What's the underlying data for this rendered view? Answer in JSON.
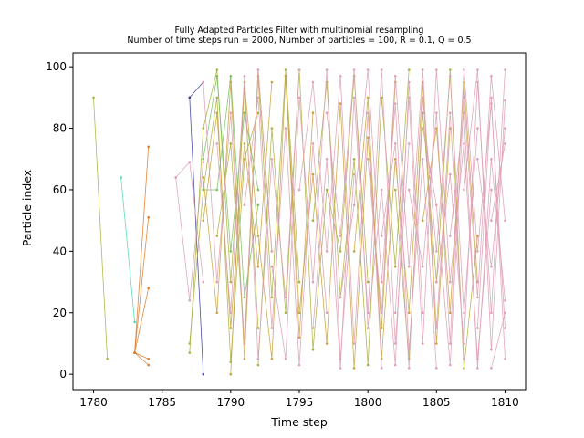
{
  "chart_data": {
    "type": "line",
    "title": "Fully Adapted Particles Filter with multinomial resampling",
    "subtitle": "Number of time steps run = 2000, Number of particles = 100, R = 0.1, Q = 0.5",
    "xlabel": "Time step",
    "ylabel": "Particle index",
    "xlim": [
      1778.5,
      1811.5
    ],
    "ylim": [
      -5,
      104.5
    ],
    "x_ticks": [
      1780,
      1785,
      1790,
      1795,
      1800,
      1805,
      1810
    ],
    "y_ticks": [
      0,
      20,
      40,
      60,
      80,
      100
    ],
    "grid": false,
    "legend": "none",
    "colors": {
      "olive": "#aab13c",
      "teal": "#4fd8b0",
      "orange": "#e07b2a",
      "navy": "#3b3ba0",
      "green": "#79c064",
      "gold": "#c9a23c",
      "pink": "#dea0b4",
      "frame": "#000000",
      "background": "#ffffff"
    },
    "lineages": [
      {
        "color": "olive",
        "points": [
          [
            1780,
            90
          ],
          [
            1781,
            5
          ]
        ]
      },
      {
        "color": "teal",
        "points": [
          [
            1782,
            64
          ],
          [
            1783,
            17
          ]
        ]
      },
      {
        "color": "orange",
        "points": [
          [
            1783,
            7
          ],
          [
            1784,
            74
          ]
        ]
      },
      {
        "color": "orange",
        "points": [
          [
            1783,
            7
          ],
          [
            1784,
            51
          ]
        ]
      },
      {
        "color": "orange",
        "points": [
          [
            1783,
            7
          ],
          [
            1784,
            28
          ]
        ]
      },
      {
        "color": "orange",
        "points": [
          [
            1783,
            7
          ],
          [
            1784,
            5
          ]
        ]
      },
      {
        "color": "orange",
        "points": [
          [
            1783,
            7
          ],
          [
            1784,
            3
          ]
        ]
      },
      {
        "color": "navy",
        "points": [
          [
            1787,
            90
          ],
          [
            1788,
            95
          ]
        ]
      },
      {
        "color": "navy",
        "points": [
          [
            1787,
            90
          ],
          [
            1788,
            0
          ]
        ]
      },
      {
        "color": "pink",
        "points": [
          [
            1786,
            64
          ],
          [
            1787,
            24
          ],
          [
            1788,
            69
          ]
        ]
      },
      {
        "color": "pink",
        "points": [
          [
            1786,
            64
          ],
          [
            1787,
            69
          ],
          [
            1788,
            30
          ]
        ]
      },
      {
        "color": "olive",
        "points": [
          [
            1787,
            7
          ],
          [
            1788,
            80
          ],
          [
            1789,
            99
          ],
          [
            1790,
            30
          ],
          [
            1791,
            93
          ],
          [
            1792,
            15
          ]
        ]
      },
      {
        "color": "olive",
        "points": [
          [
            1787,
            10
          ],
          [
            1788,
            60
          ],
          [
            1789,
            90
          ],
          [
            1790,
            4
          ],
          [
            1791,
            70
          ],
          [
            1792,
            85
          ]
        ]
      },
      {
        "color": "green",
        "points": [
          [
            1788,
            70
          ],
          [
            1789,
            97
          ],
          [
            1790,
            40
          ],
          [
            1791,
            85
          ],
          [
            1792,
            60
          ]
        ]
      },
      {
        "color": "green",
        "points": [
          [
            1788,
            60
          ],
          [
            1789,
            60
          ],
          [
            1790,
            97
          ],
          [
            1791,
            25
          ],
          [
            1792,
            55
          ]
        ]
      },
      {
        "color": "gold",
        "points": [
          [
            1788,
            64
          ],
          [
            1789,
            20
          ],
          [
            1790,
            95
          ],
          [
            1791,
            5
          ],
          [
            1792,
            99
          ],
          [
            1793,
            40
          ]
        ]
      },
      {
        "color": "gold",
        "points": [
          [
            1788,
            50
          ],
          [
            1789,
            85
          ],
          [
            1790,
            15
          ],
          [
            1791,
            75
          ],
          [
            1792,
            35
          ],
          [
            1793,
            95
          ]
        ]
      },
      {
        "color": "olive",
        "points": [
          [
            1789,
            45
          ],
          [
            1790,
            75
          ],
          [
            1791,
            10
          ],
          [
            1792,
            97
          ],
          [
            1793,
            25
          ],
          [
            1794,
            99
          ],
          [
            1795,
            30
          ]
        ]
      },
      {
        "color": "gold",
        "points": [
          [
            1790,
            0
          ],
          [
            1791,
            95
          ],
          [
            1792,
            45
          ],
          [
            1793,
            5
          ],
          [
            1794,
            97
          ],
          [
            1795,
            12
          ],
          [
            1796,
            85
          ]
        ]
      },
      {
        "color": "olive",
        "points": [
          [
            1792,
            3
          ],
          [
            1793,
            80
          ],
          [
            1794,
            20
          ],
          [
            1795,
            99
          ],
          [
            1796,
            8
          ],
          [
            1797,
            60
          ],
          [
            1798,
            40
          ],
          [
            1799,
            97
          ],
          [
            1800,
            30
          ]
        ]
      },
      {
        "color": "gold",
        "points": [
          [
            1794,
            97
          ],
          [
            1795,
            20
          ],
          [
            1796,
            65
          ],
          [
            1797,
            10
          ],
          [
            1798,
            88
          ],
          [
            1799,
            2
          ],
          [
            1800,
            77
          ],
          [
            1801,
            15
          ],
          [
            1802,
            95
          ]
        ]
      },
      {
        "color": "olive",
        "points": [
          [
            1796,
            50
          ],
          [
            1797,
            95
          ],
          [
            1798,
            25
          ],
          [
            1799,
            70
          ],
          [
            1800,
            3
          ],
          [
            1801,
            90
          ],
          [
            1802,
            35
          ],
          [
            1803,
            99
          ]
        ]
      },
      {
        "color": "gold",
        "points": [
          [
            1799,
            40
          ],
          [
            1800,
            90
          ],
          [
            1801,
            5
          ],
          [
            1802,
            70
          ],
          [
            1803,
            20
          ],
          [
            1804,
            95
          ],
          [
            1805,
            10
          ],
          [
            1806,
            80
          ]
        ]
      },
      {
        "color": "olive",
        "points": [
          [
            1802,
            60
          ],
          [
            1803,
            5
          ],
          [
            1804,
            85
          ],
          [
            1805,
            30
          ],
          [
            1806,
            99
          ],
          [
            1807,
            2
          ],
          [
            1808,
            45
          ]
        ]
      },
      {
        "color": "gold",
        "points": [
          [
            1804,
            50
          ],
          [
            1805,
            80
          ],
          [
            1806,
            20
          ],
          [
            1807,
            95
          ],
          [
            1808,
            30
          ]
        ]
      },
      {
        "color": "pink",
        "points": [
          [
            1788,
            95
          ],
          [
            1789,
            30
          ],
          [
            1790,
            85
          ],
          [
            1791,
            10
          ],
          [
            1792,
            99
          ],
          [
            1793,
            40
          ]
        ]
      },
      {
        "color": "pink",
        "points": [
          [
            1789,
            75
          ],
          [
            1790,
            20
          ],
          [
            1791,
            97
          ],
          [
            1792,
            5
          ],
          [
            1793,
            70
          ],
          [
            1794,
            25
          ],
          [
            1795,
            99
          ]
        ]
      },
      {
        "color": "pink",
        "points": [
          [
            1791,
            55
          ],
          [
            1792,
            90
          ],
          [
            1793,
            15
          ],
          [
            1794,
            80
          ],
          [
            1795,
            3
          ],
          [
            1796,
            75
          ],
          [
            1797,
            20
          ]
        ]
      },
      {
        "color": "pink",
        "points": [
          [
            1793,
            35
          ],
          [
            1794,
            5
          ],
          [
            1795,
            90
          ],
          [
            1796,
            30
          ],
          [
            1797,
            99
          ],
          [
            1798,
            5
          ],
          [
            1799,
            65
          ]
        ]
      },
      {
        "color": "pink",
        "points": [
          [
            1795,
            60
          ],
          [
            1796,
            95
          ],
          [
            1797,
            40
          ],
          [
            1798,
            97
          ],
          [
            1799,
            10
          ],
          [
            1800,
            85
          ],
          [
            1801,
            2
          ]
        ]
      },
      {
        "color": "pink",
        "points": [
          [
            1796,
            15
          ],
          [
            1797,
            70
          ],
          [
            1798,
            2
          ],
          [
            1799,
            90
          ],
          [
            1800,
            20
          ],
          [
            1801,
            99
          ],
          [
            1802,
            10
          ],
          [
            1803,
            75
          ]
        ]
      },
      {
        "color": "pink",
        "points": [
          [
            1797,
            85
          ],
          [
            1798,
            45
          ],
          [
            1799,
            99
          ],
          [
            1800,
            15
          ],
          [
            1801,
            60
          ],
          [
            1802,
            3
          ],
          [
            1803,
            95
          ],
          [
            1804,
            20
          ]
        ]
      },
      {
        "color": "pink",
        "points": [
          [
            1798,
            25
          ],
          [
            1799,
            55
          ],
          [
            1800,
            99
          ],
          [
            1801,
            30
          ],
          [
            1802,
            88
          ],
          [
            1803,
            8
          ],
          [
            1804,
            70
          ],
          [
            1805,
            2
          ]
        ]
      },
      {
        "color": "pink",
        "points": [
          [
            1800,
            70
          ],
          [
            1801,
            20
          ],
          [
            1802,
            97
          ],
          [
            1803,
            35
          ],
          [
            1804,
            99
          ],
          [
            1805,
            15
          ],
          [
            1806,
            85
          ],
          [
            1807,
            5
          ]
        ]
      },
      {
        "color": "pink",
        "points": [
          [
            1801,
            45
          ],
          [
            1802,
            75
          ],
          [
            1803,
            2
          ],
          [
            1804,
            90
          ],
          [
            1805,
            40
          ],
          [
            1806,
            97
          ],
          [
            1807,
            20
          ],
          [
            1808,
            80
          ]
        ]
      },
      {
        "color": "pink",
        "points": [
          [
            1802,
            20
          ],
          [
            1803,
            90
          ],
          [
            1804,
            10
          ],
          [
            1805,
            99
          ],
          [
            1806,
            30
          ],
          [
            1807,
            75
          ],
          [
            1808,
            5
          ],
          [
            1809,
            60
          ]
        ]
      },
      {
        "color": "pink",
        "points": [
          [
            1803,
            60
          ],
          [
            1804,
            35
          ],
          [
            1805,
            85
          ],
          [
            1806,
            10
          ],
          [
            1807,
            99
          ],
          [
            1808,
            40
          ],
          [
            1809,
            88
          ],
          [
            1810,
            15
          ]
        ]
      },
      {
        "color": "pink",
        "points": [
          [
            1804,
            80
          ],
          [
            1805,
            55
          ],
          [
            1806,
            3
          ],
          [
            1807,
            90
          ],
          [
            1808,
            25
          ],
          [
            1809,
            97
          ],
          [
            1810,
            50
          ]
        ]
      },
      {
        "color": "pink",
        "points": [
          [
            1805,
            30
          ],
          [
            1806,
            65
          ],
          [
            1807,
            10
          ],
          [
            1808,
            95
          ],
          [
            1809,
            20
          ],
          [
            1810,
            99
          ]
        ]
      },
      {
        "color": "pink",
        "points": [
          [
            1806,
            45
          ],
          [
            1807,
            85
          ],
          [
            1808,
            2
          ],
          [
            1809,
            70
          ],
          [
            1810,
            24
          ]
        ]
      },
      {
        "color": "pink",
        "points": [
          [
            1807,
            60
          ],
          [
            1808,
            99
          ],
          [
            1809,
            8
          ],
          [
            1810,
            89
          ]
        ]
      },
      {
        "color": "pink",
        "points": [
          [
            1808,
            70
          ],
          [
            1809,
            35
          ],
          [
            1810,
            80
          ]
        ]
      },
      {
        "color": "pink",
        "points": [
          [
            1808,
            15
          ],
          [
            1809,
            90
          ],
          [
            1810,
            5
          ]
        ]
      },
      {
        "color": "pink",
        "points": [
          [
            1809,
            50
          ],
          [
            1810,
            75
          ]
        ]
      },
      {
        "color": "pink",
        "points": [
          [
            1809,
            2
          ],
          [
            1810,
            20
          ]
        ]
      }
    ]
  }
}
